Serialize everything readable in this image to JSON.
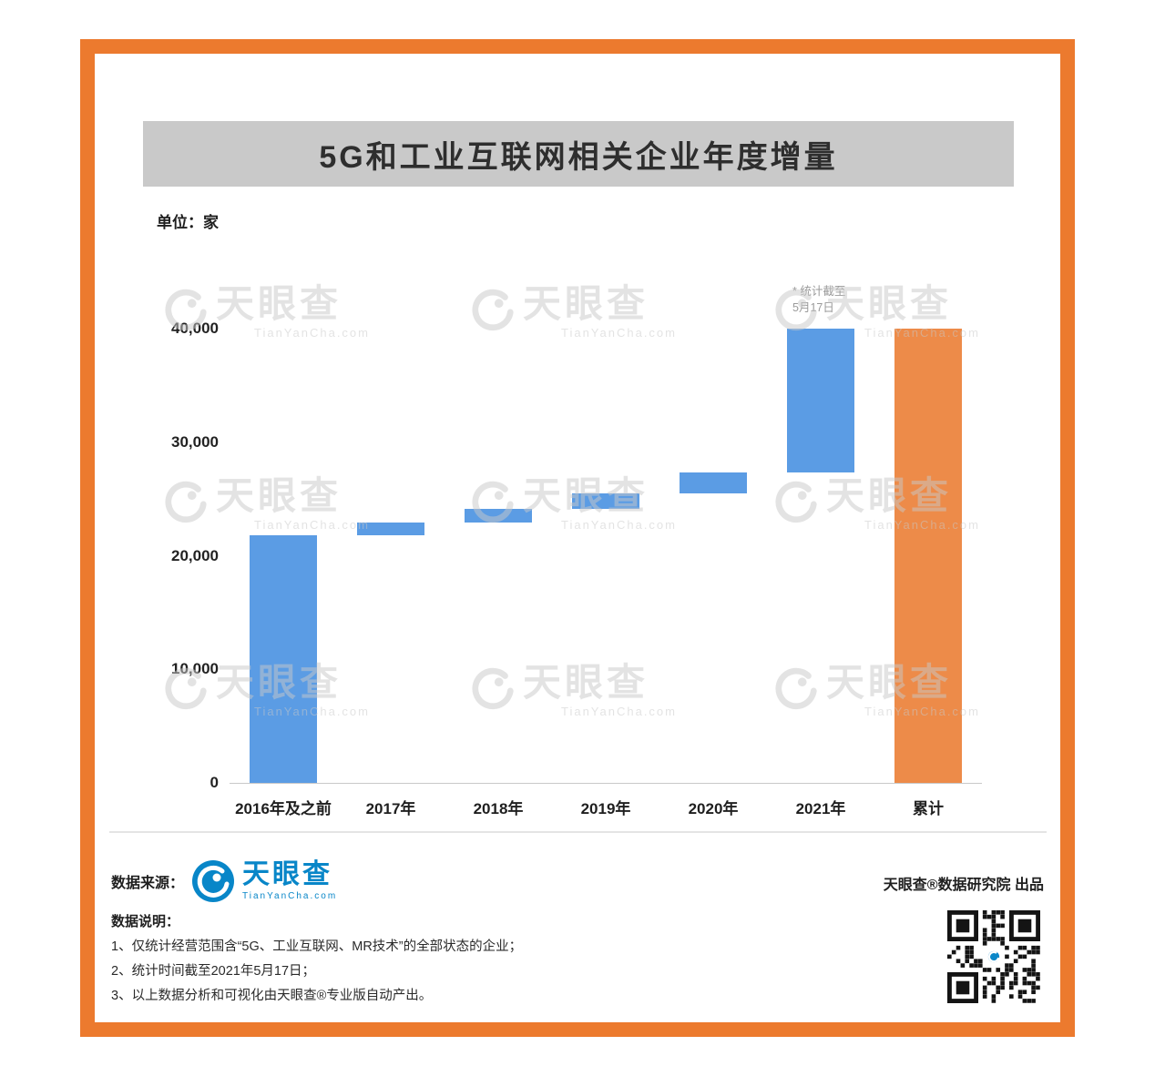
{
  "title": "5G和工业互联网相关企业年度增量",
  "unit_label": "单位：家",
  "colors": {
    "frame_orange": "#EC7A2E",
    "bar_blue": "#5B9CE4",
    "bar_orange": "#ED8B49",
    "title_bg": "#C9C9C9",
    "logo_blue": "#0886C8"
  },
  "annotation": {
    "line1": "* 统计截至",
    "line2": "5月17日"
  },
  "chart_data": {
    "type": "bar",
    "subtype": "waterfall",
    "title": "5G和工业互联网相关企业年度增量",
    "xlabel": "",
    "ylabel": "单位：家",
    "ylim": [
      0,
      40000
    ],
    "yticks": [
      0,
      10000,
      20000,
      30000,
      40000
    ],
    "ytick_labels": [
      "0",
      "10,000",
      "20,000",
      "30,000",
      "40,000"
    ],
    "grid": false,
    "legend": false,
    "categories": [
      "2016年及之前",
      "2017年",
      "2018年",
      "2019年",
      "2020年",
      "2021年",
      "累计"
    ],
    "bars": [
      {
        "category": "2016年及之前",
        "start": 0,
        "end": 21800,
        "color": "#5B9CE4"
      },
      {
        "category": "2017年",
        "start": 21800,
        "end": 22900,
        "color": "#5B9CE4"
      },
      {
        "category": "2018年",
        "start": 22900,
        "end": 24100,
        "color": "#5B9CE4"
      },
      {
        "category": "2019年",
        "start": 24100,
        "end": 25500,
        "color": "#5B9CE4"
      },
      {
        "category": "2020年",
        "start": 25500,
        "end": 27300,
        "color": "#5B9CE4"
      },
      {
        "category": "2021年",
        "start": 27300,
        "end": 40000,
        "color": "#5B9CE4",
        "note": "* 统计截至 5月17日"
      },
      {
        "category": "累计",
        "start": 0,
        "end": 40000,
        "color": "#ED8B49"
      }
    ]
  },
  "watermark": {
    "text": "天眼查",
    "subtext": "TianYanCha.com"
  },
  "footer": {
    "source_label": "数据来源：",
    "logo_text": "天眼查",
    "logo_subtext": "TianYanCha.com",
    "publisher": "天眼查®数据研究院 出品",
    "notes_label": "数据说明：",
    "notes": [
      "1、仅统计经营范围含“5G、工业互联网、MR技术”的全部状态的企业；",
      "2、统计时间截至2021年5月17日；",
      "3、以上数据分析和可视化由天眼查®专业版自动产出。"
    ]
  }
}
